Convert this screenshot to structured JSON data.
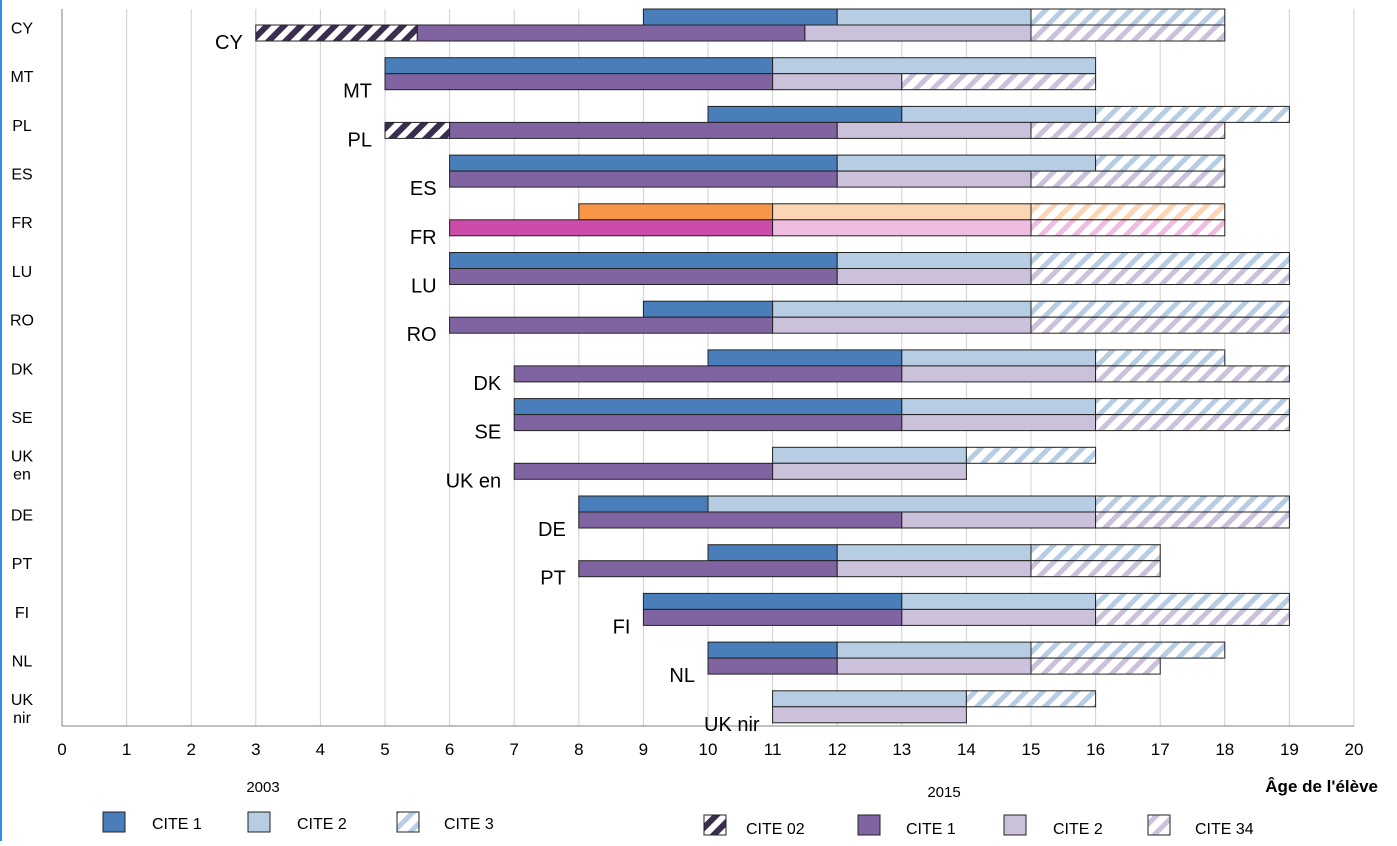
{
  "chart_data": {
    "type": "bar",
    "orientation": "horizontal",
    "x_axis": {
      "label": "Âge de l'élève",
      "min": 0,
      "max": 20,
      "ticks": [
        "0",
        "1",
        "2",
        "3",
        "4",
        "5",
        "6",
        "7",
        "8",
        "9",
        "10",
        "11",
        "12",
        "13",
        "14",
        "15",
        "16",
        "17",
        "18",
        "19",
        "20"
      ]
    },
    "grid": true,
    "year_labels": [
      "2003",
      "2015"
    ],
    "legend": {
      "2003": [
        {
          "name": "CITE 1",
          "key": "c1_2003"
        },
        {
          "name": "CITE 2",
          "key": "c2_2003"
        },
        {
          "name": "CITE 3",
          "key": "c3_2003"
        }
      ],
      "2015": [
        {
          "name": "CITE 02",
          "key": "c02_2015"
        },
        {
          "name": "CITE 1",
          "key": "c1_2015"
        },
        {
          "name": "CITE 2",
          "key": "c2_2015"
        },
        {
          "name": "CITE 34",
          "key": "c34_2015"
        }
      ]
    },
    "colors": {
      "c1_2003": "#4a7ebb",
      "c2_2003": "#b7cde3",
      "c3_2003": "#b7cde3",
      "c02_2015": "#3b2d4f",
      "c1_2015": "#8064a2",
      "c2_2015": "#ccc1da",
      "c34_2015": "#ccc1da",
      "fr_c1_2003": "#f79646",
      "fr_c2_2003": "#fcd5b4",
      "fr_c3_2003": "#fcd5b4",
      "fr_c1_2015": "#cc4ca9",
      "fr_c2_2015": "#eebde0",
      "fr_c34_2015": "#eebde0"
    },
    "countries": [
      {
        "code": "CY",
        "label": "CY",
        "label_2015": "CY",
        "y2003": [
          {
            "level": "c1",
            "start": 9,
            "end": 12
          },
          {
            "level": "c2",
            "start": 12,
            "end": 15
          },
          {
            "level": "c3",
            "start": 15,
            "end": 18
          }
        ],
        "y2015": [
          {
            "level": "c02",
            "start": 3,
            "end": 5.5
          },
          {
            "level": "c1",
            "start": 5.5,
            "end": 11.5
          },
          {
            "level": "c2",
            "start": 11.5,
            "end": 15
          },
          {
            "level": "c34",
            "start": 15,
            "end": 18
          }
        ]
      },
      {
        "code": "MT",
        "label": "MT",
        "label_2015": "MT",
        "y2003": [
          {
            "level": "c1",
            "start": 5,
            "end": 11
          },
          {
            "level": "c2",
            "start": 11,
            "end": 16
          }
        ],
        "y2015": [
          {
            "level": "c1",
            "start": 5,
            "end": 11
          },
          {
            "level": "c2",
            "start": 11,
            "end": 13
          },
          {
            "level": "c34",
            "start": 13,
            "end": 16
          }
        ]
      },
      {
        "code": "PL",
        "label": "PL",
        "label_2015": "PL",
        "y2003": [
          {
            "level": "c1",
            "start": 10,
            "end": 13
          },
          {
            "level": "c2",
            "start": 13,
            "end": 16
          },
          {
            "level": "c3",
            "start": 16,
            "end": 19
          }
        ],
        "y2015": [
          {
            "level": "c02",
            "start": 5,
            "end": 6
          },
          {
            "level": "c1",
            "start": 6,
            "end": 12
          },
          {
            "level": "c2",
            "start": 12,
            "end": 15
          },
          {
            "level": "c34",
            "start": 15,
            "end": 18
          }
        ]
      },
      {
        "code": "ES",
        "label": "ES",
        "label_2015": "ES",
        "y2003": [
          {
            "level": "c1",
            "start": 6,
            "end": 12
          },
          {
            "level": "c2",
            "start": 12,
            "end": 16
          },
          {
            "level": "c3",
            "start": 16,
            "end": 18
          }
        ],
        "y2015": [
          {
            "level": "c1",
            "start": 6,
            "end": 12
          },
          {
            "level": "c2",
            "start": 12,
            "end": 15
          },
          {
            "level": "c34",
            "start": 15,
            "end": 18
          }
        ]
      },
      {
        "code": "FR",
        "label": "FR",
        "label_2015": "FR",
        "highlight": true,
        "y2003": [
          {
            "level": "c1",
            "start": 8,
            "end": 11
          },
          {
            "level": "c2",
            "start": 11,
            "end": 15
          },
          {
            "level": "c3",
            "start": 15,
            "end": 18
          }
        ],
        "y2015": [
          {
            "level": "c1",
            "start": 6,
            "end": 11
          },
          {
            "level": "c2",
            "start": 11,
            "end": 15
          },
          {
            "level": "c34",
            "start": 15,
            "end": 18
          }
        ]
      },
      {
        "code": "LU",
        "label": "LU",
        "label_2015": "LU",
        "y2003": [
          {
            "level": "c1",
            "start": 6,
            "end": 12
          },
          {
            "level": "c2",
            "start": 12,
            "end": 15
          },
          {
            "level": "c3",
            "start": 15,
            "end": 19
          }
        ],
        "y2015": [
          {
            "level": "c1",
            "start": 6,
            "end": 12
          },
          {
            "level": "c2",
            "start": 12,
            "end": 15
          },
          {
            "level": "c34",
            "start": 15,
            "end": 19
          }
        ]
      },
      {
        "code": "RO",
        "label": "RO",
        "label_2015": "RO",
        "y2003": [
          {
            "level": "c1",
            "start": 9,
            "end": 11
          },
          {
            "level": "c2",
            "start": 11,
            "end": 15
          },
          {
            "level": "c3",
            "start": 15,
            "end": 19
          }
        ],
        "y2015": [
          {
            "level": "c1",
            "start": 6,
            "end": 11
          },
          {
            "level": "c2",
            "start": 11,
            "end": 15
          },
          {
            "level": "c34",
            "start": 15,
            "end": 19
          }
        ]
      },
      {
        "code": "DK",
        "label": "DK",
        "label_2015": "DK",
        "y2003": [
          {
            "level": "c1",
            "start": 10,
            "end": 13
          },
          {
            "level": "c2",
            "start": 13,
            "end": 16
          },
          {
            "level": "c3",
            "start": 16,
            "end": 18
          }
        ],
        "y2015": [
          {
            "level": "c1",
            "start": 7,
            "end": 13
          },
          {
            "level": "c2",
            "start": 13,
            "end": 16
          },
          {
            "level": "c34",
            "start": 16,
            "end": 19
          }
        ]
      },
      {
        "code": "SE",
        "label": "SE",
        "label_2015": "SE",
        "y2003": [
          {
            "level": "c1",
            "start": 7,
            "end": 13
          },
          {
            "level": "c2",
            "start": 13,
            "end": 16
          },
          {
            "level": "c3",
            "start": 16,
            "end": 19
          }
        ],
        "y2015": [
          {
            "level": "c1",
            "start": 7,
            "end": 13
          },
          {
            "level": "c2",
            "start": 13,
            "end": 16
          },
          {
            "level": "c34",
            "start": 16,
            "end": 19
          }
        ]
      },
      {
        "code": "UK en",
        "label": "UK\nen",
        "label_2015": "UK en",
        "y2003": [
          {
            "level": "c2",
            "start": 11,
            "end": 14
          },
          {
            "level": "c3",
            "start": 14,
            "end": 16
          }
        ],
        "y2015": [
          {
            "level": "c1",
            "start": 7,
            "end": 11
          },
          {
            "level": "c2",
            "start": 11,
            "end": 14
          }
        ]
      },
      {
        "code": "DE",
        "label": "DE",
        "label_2015": "DE",
        "y2003": [
          {
            "level": "c1",
            "start": 8,
            "end": 10
          },
          {
            "level": "c2",
            "start": 10,
            "end": 16
          },
          {
            "level": "c3",
            "start": 16,
            "end": 19
          }
        ],
        "y2015": [
          {
            "level": "c1",
            "start": 8,
            "end": 13
          },
          {
            "level": "c2",
            "start": 13,
            "end": 16
          },
          {
            "level": "c34",
            "start": 16,
            "end": 19
          }
        ]
      },
      {
        "code": "PT",
        "label": "PT",
        "label_2015": "PT",
        "y2003": [
          {
            "level": "c1",
            "start": 10,
            "end": 12
          },
          {
            "level": "c2",
            "start": 12,
            "end": 15
          },
          {
            "level": "c3",
            "start": 15,
            "end": 17
          }
        ],
        "y2015": [
          {
            "level": "c1",
            "start": 8,
            "end": 12
          },
          {
            "level": "c2",
            "start": 12,
            "end": 15
          },
          {
            "level": "c34",
            "start": 15,
            "end": 17
          }
        ]
      },
      {
        "code": "FI",
        "label": "FI",
        "label_2015": "FI",
        "y2003": [
          {
            "level": "c1",
            "start": 9,
            "end": 13
          },
          {
            "level": "c2",
            "start": 13,
            "end": 16
          },
          {
            "level": "c3",
            "start": 16,
            "end": 19
          }
        ],
        "y2015": [
          {
            "level": "c1",
            "start": 9,
            "end": 13
          },
          {
            "level": "c2",
            "start": 13,
            "end": 16
          },
          {
            "level": "c34",
            "start": 16,
            "end": 19
          }
        ]
      },
      {
        "code": "NL",
        "label": "NL",
        "label_2015": "NL",
        "y2003": [
          {
            "level": "c1",
            "start": 10,
            "end": 12
          },
          {
            "level": "c2",
            "start": 12,
            "end": 15
          },
          {
            "level": "c3",
            "start": 15,
            "end": 18
          }
        ],
        "y2015": [
          {
            "level": "c1",
            "start": 10,
            "end": 12
          },
          {
            "level": "c2",
            "start": 12,
            "end": 15
          },
          {
            "level": "c34",
            "start": 15,
            "end": 17
          }
        ]
      },
      {
        "code": "UK nir",
        "label": "UK\nnir",
        "label_2015": "UK nir",
        "y2003": [
          {
            "level": "c2",
            "start": 11,
            "end": 14
          },
          {
            "level": "c3",
            "start": 14,
            "end": 16
          }
        ],
        "y2015": [
          {
            "level": "c2",
            "start": 11,
            "end": 14
          }
        ]
      }
    ]
  }
}
